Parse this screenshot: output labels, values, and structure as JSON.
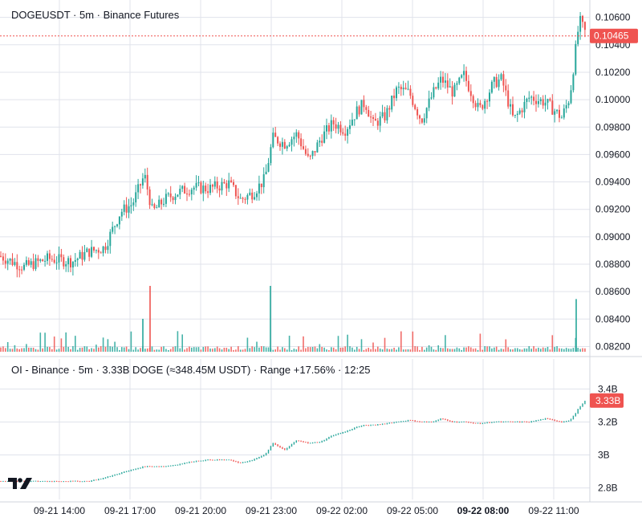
{
  "header": {
    "price_title": "DOGEUSDT · 5m · Binance Futures",
    "oi_title": "OI - Binance · 5m · 3.33B DOGE (≈348.45M USDT) · Range +17.56% · 12:25"
  },
  "colors": {
    "up": "#26a69a",
    "down": "#ef5350",
    "grid": "#e0e3eb",
    "axis_text": "#131722",
    "last_line": "#ef5350"
  },
  "chart_data": [
    {
      "type": "candlestick",
      "title": "DOGEUSDT · 5m · Binance Futures",
      "y_ticks": [
        0.082,
        0.084,
        0.086,
        0.088,
        0.09,
        0.092,
        0.094,
        0.096,
        0.098,
        0.1,
        0.102,
        0.104,
        0.106
      ],
      "y_tick_labels": [
        "0.08200",
        "0.08400",
        "0.08600",
        "0.08800",
        "0.09000",
        "0.09200",
        "0.09400",
        "0.09600",
        "0.09800",
        "0.10000",
        "0.10200",
        "0.10400",
        "0.10600"
      ],
      "ylim": [
        0.0815,
        0.1068
      ],
      "last_price": "0.10465",
      "price_path": [
        [
          0,
          0.0886
        ],
        [
          30,
          0.0878
        ],
        [
          60,
          0.0884
        ],
        [
          90,
          0.0882
        ],
        [
          110,
          0.0889
        ],
        [
          130,
          0.0892
        ],
        [
          150,
          0.0918
        ],
        [
          165,
          0.0924
        ],
        [
          180,
          0.0945
        ],
        [
          190,
          0.0918
        ],
        [
          205,
          0.0927
        ],
        [
          220,
          0.0932
        ],
        [
          240,
          0.0936
        ],
        [
          260,
          0.0935
        ],
        [
          285,
          0.0939
        ],
        [
          300,
          0.0927
        ],
        [
          315,
          0.0932
        ],
        [
          330,
          0.0942
        ],
        [
          340,
          0.0972
        ],
        [
          355,
          0.0968
        ],
        [
          370,
          0.0975
        ],
        [
          385,
          0.0955
        ],
        [
          400,
          0.0972
        ],
        [
          415,
          0.0983
        ],
        [
          430,
          0.0978
        ],
        [
          445,
          0.0992
        ],
        [
          455,
          0.0998
        ],
        [
          465,
          0.0982
        ],
        [
          480,
          0.0988
        ],
        [
          495,
          0.1008
        ],
        [
          510,
          0.1005
        ],
        [
          525,
          0.0985
        ],
        [
          540,
          0.1005
        ],
        [
          550,
          0.1015
        ],
        [
          565,
          0.1005
        ],
        [
          578,
          0.1018
        ],
        [
          597,
          0.0992
        ],
        [
          615,
          0.1012
        ],
        [
          625,
          0.1015
        ],
        [
          640,
          0.0985
        ],
        [
          660,
          0.1002
        ],
        [
          680,
          0.0998
        ],
        [
          700,
          0.0987
        ],
        [
          710,
          0.1002
        ],
        [
          717,
          0.1035
        ],
        [
          722,
          0.1058
        ],
        [
          730,
          0.1048
        ]
      ],
      "volume_spikes": [
        {
          "x": 178,
          "color": "up",
          "h": 0.5
        },
        {
          "x": 187,
          "color": "down",
          "h": 1.0
        },
        {
          "x": 337,
          "color": "up",
          "h": 1.0
        },
        {
          "x": 718,
          "color": "up",
          "h": 0.8
        }
      ],
      "volume": true
    },
    {
      "type": "line",
      "title": "OI - Binance · 5m · 3.33B DOGE (≈348.45M USDT) · Range +17.56% · 12:25",
      "y_ticks": [
        2.8,
        3.0,
        3.2,
        3.4
      ],
      "y_tick_labels": [
        "2.8B",
        "3B",
        "3.2B",
        "3.4B"
      ],
      "ylim": [
        2.73,
        3.47
      ],
      "last_value": "3.33B",
      "series": [
        {
          "x": [
            0,
            30,
            60,
            90,
            110,
            130,
            150,
            165,
            180,
            190,
            205,
            220,
            240,
            260,
            285,
            300,
            315,
            330,
            340,
            355,
            370,
            385,
            400,
            415,
            430,
            445,
            455,
            465,
            480,
            495,
            510,
            525,
            540,
            550,
            565,
            578,
            597,
            615,
            625,
            640,
            660,
            680,
            700,
            710,
            717,
            722,
            730
          ],
          "values": [
            2.84,
            2.84,
            2.84,
            2.84,
            2.84,
            2.86,
            2.89,
            2.91,
            2.93,
            2.93,
            2.93,
            2.94,
            2.96,
            2.97,
            2.97,
            2.95,
            2.97,
            3.0,
            3.07,
            3.03,
            3.09,
            3.07,
            3.08,
            3.12,
            3.14,
            3.17,
            3.18,
            3.18,
            3.19,
            3.2,
            3.21,
            3.2,
            3.2,
            3.22,
            3.2,
            3.2,
            3.19,
            3.2,
            3.2,
            3.2,
            3.2,
            3.22,
            3.2,
            3.21,
            3.25,
            3.29,
            3.33
          ]
        }
      ]
    }
  ],
  "x_axis": {
    "labels": [
      "09-21 14:00",
      "09-21 17:00",
      "09-21 20:00",
      "09-21 23:00",
      "09-22 02:00",
      "09-22 05:00",
      "09-22 08:00",
      "09-22 11:00"
    ],
    "bold_label": "09-22 08:00"
  }
}
